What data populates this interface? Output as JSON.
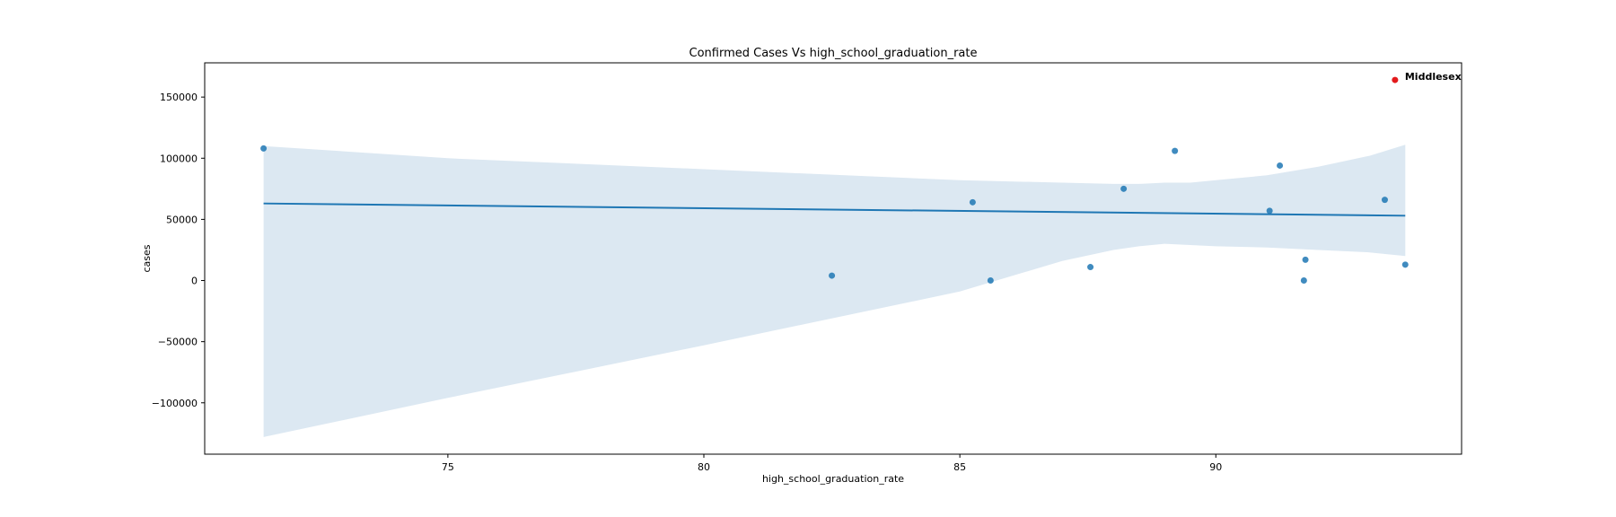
{
  "chart_data": {
    "type": "scatter",
    "title": "Confirmed Cases Vs high_school_graduation_rate",
    "xlabel": "high_school_graduation_rate",
    "ylabel": "cases",
    "xlim": [
      70.25,
      94.8
    ],
    "ylim": [
      -142000,
      178000
    ],
    "x_ticks": [
      75,
      80,
      85,
      90
    ],
    "x_tick_labels": [
      "75",
      "80",
      "85",
      "90"
    ],
    "y_ticks": [
      150000,
      100000,
      50000,
      0,
      -50000,
      -100000
    ],
    "y_tick_labels": [
      "150000",
      "100000",
      "50000",
      "0",
      "−50000",
      "−100000"
    ],
    "grid": false,
    "points_color": "#1f77b4",
    "highlight_color": "#e31a1c",
    "band_color": "#dce8f2",
    "points": [
      {
        "x": 71.4,
        "y": 108000
      },
      {
        "x": 82.5,
        "y": 4000
      },
      {
        "x": 85.25,
        "y": 64000
      },
      {
        "x": 85.6,
        "y": 0
      },
      {
        "x": 87.55,
        "y": 11000
      },
      {
        "x": 88.2,
        "y": 75000
      },
      {
        "x": 89.2,
        "y": 106000
      },
      {
        "x": 91.05,
        "y": 57000
      },
      {
        "x": 91.25,
        "y": 94000
      },
      {
        "x": 91.75,
        "y": 17000
      },
      {
        "x": 91.72,
        "y": 0
      },
      {
        "x": 93.3,
        "y": 66000
      },
      {
        "x": 93.7,
        "y": 13000
      }
    ],
    "highlight": {
      "x": 93.5,
      "y": 164000,
      "label": "Middlesex"
    },
    "regression_line": {
      "x": [
        71.4,
        93.7
      ],
      "y": [
        63000,
        53000
      ]
    },
    "confidence_band": {
      "x": [
        71.4,
        75,
        80,
        85,
        87,
        88,
        88.5,
        89,
        89.5,
        90,
        91,
        92,
        93,
        93.7
      ],
      "upper": [
        110000,
        100000,
        91000,
        82000,
        80000,
        79000,
        79000,
        80000,
        80000,
        82000,
        86000,
        93000,
        102000,
        111000
      ],
      "lower": [
        -128000,
        -96000,
        -53000,
        -9000,
        16000,
        25000,
        28000,
        30000,
        29000,
        28000,
        27000,
        25000,
        23000,
        20000
      ]
    }
  }
}
